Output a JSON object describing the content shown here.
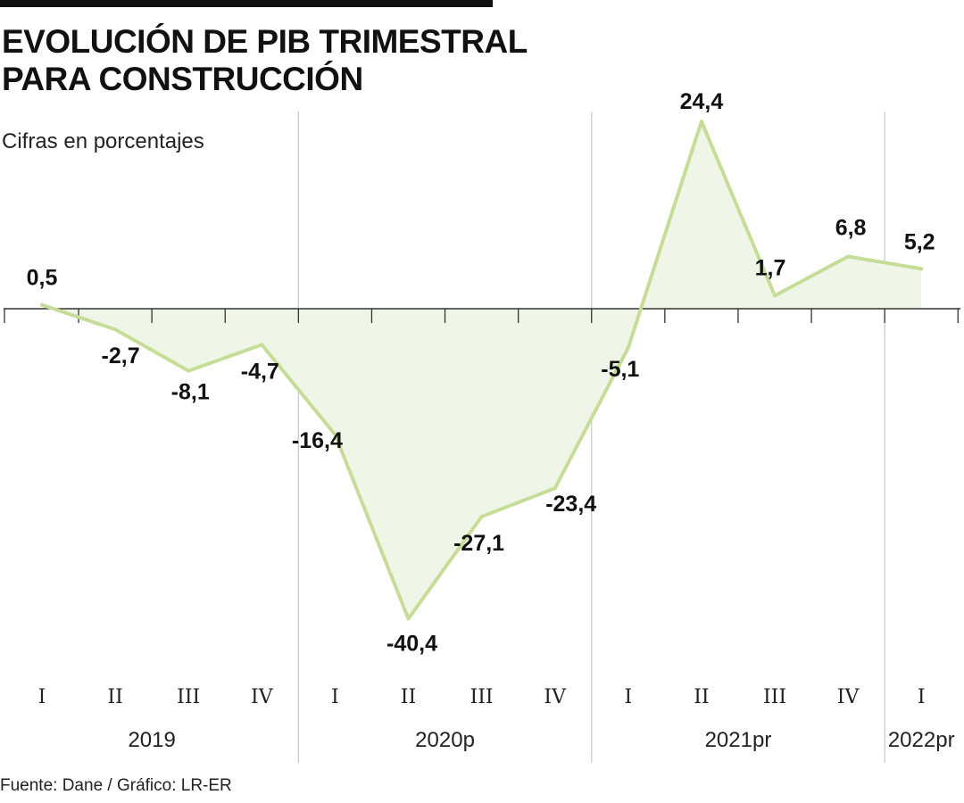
{
  "title_line1": "EVOLUCIÓN DE PIB TRIMESTRAL",
  "title_line2": "PARA CONSTRUCCIÓN",
  "subtitle": "Cifras en porcentajes",
  "source": "Fuente: Dane / Gráfico: LR-ER",
  "colors": {
    "line": "#c6dd98",
    "area": "#f0f6e7",
    "axis": "#333333",
    "separator": "#c8c8c8"
  },
  "chart_data": {
    "type": "area",
    "quarters": [
      "I",
      "II",
      "III",
      "IV",
      "I",
      "II",
      "III",
      "IV",
      "I",
      "II",
      "III",
      "IV",
      "I"
    ],
    "year_groups": [
      {
        "label": "2019",
        "start": 0,
        "end": 3
      },
      {
        "label": "2020p",
        "start": 4,
        "end": 7
      },
      {
        "label": "2021pr",
        "start": 8,
        "end": 11
      },
      {
        "label": "2022pr",
        "start": 12,
        "end": 12
      }
    ],
    "values": [
      0.5,
      -2.7,
      -8.1,
      -4.7,
      -16.4,
      -40.4,
      -27.1,
      -23.4,
      -5.1,
      24.4,
      1.7,
      6.8,
      5.2
    ],
    "value_labels": [
      "0,5",
      "-2,7",
      "-8,1",
      "-4,7",
      "-16,4",
      "-40,4",
      "-27,1",
      "-23,4",
      "-5,1",
      "24,4",
      "1,7",
      "6,8",
      "5,2"
    ],
    "baseline": 0,
    "grid": false,
    "legend": "none"
  }
}
